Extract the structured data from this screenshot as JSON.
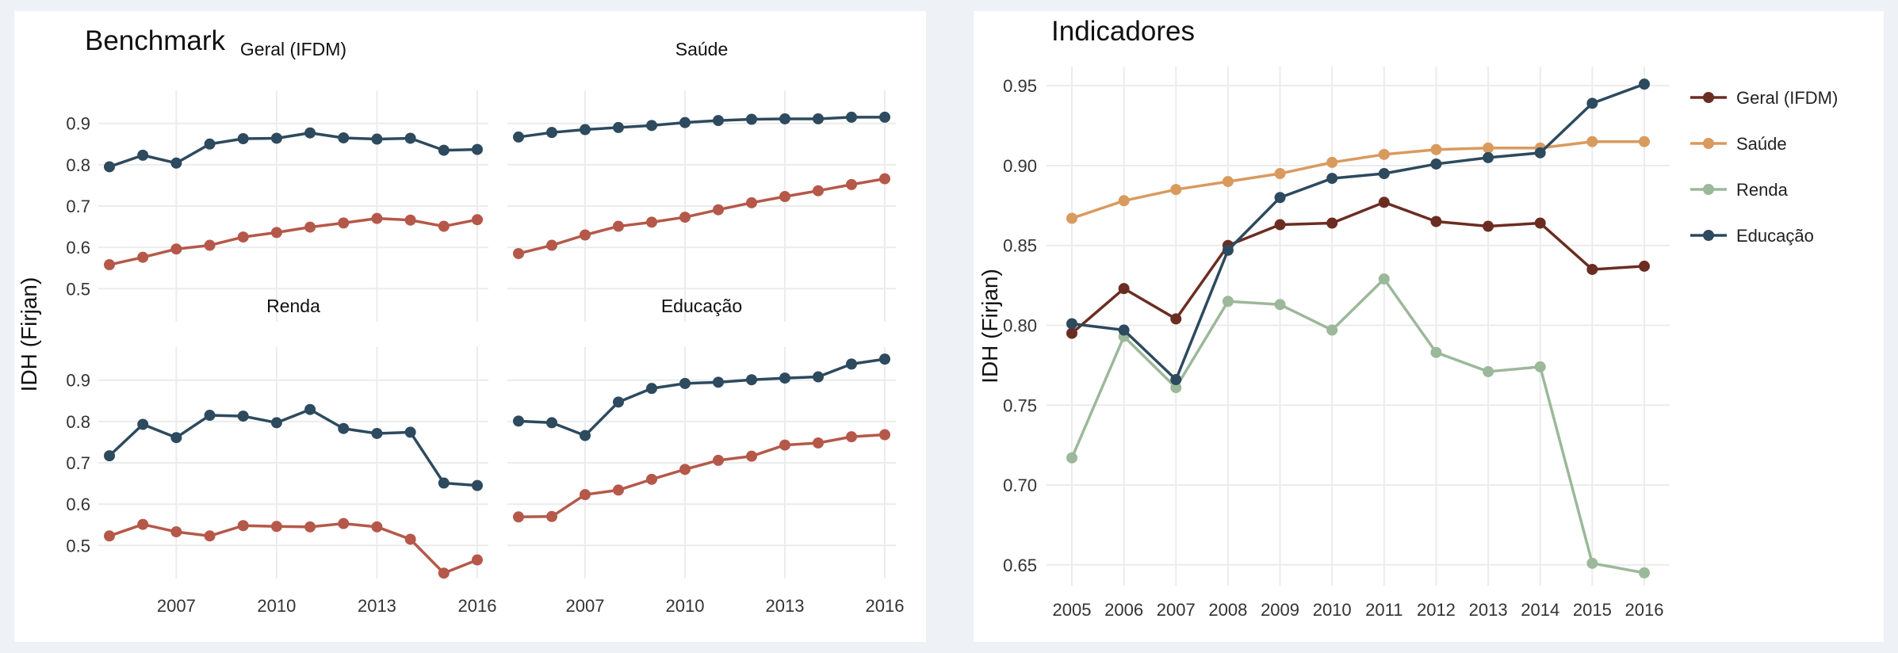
{
  "colors": {
    "benchmark": "#2d4a5e",
    "municipio": "#b5584a",
    "geral": "#6b2d22",
    "saude": "#d99a5e",
    "renda": "#9cb89a",
    "educacao": "#2d4a5e",
    "grid": "#ececec",
    "text": "#333333"
  },
  "left": {
    "title": "Benchmark",
    "ylabel": "IDH (Firjan)",
    "facets": [
      "Geral (IFDM)",
      "Saúde",
      "Renda",
      "Educação"
    ]
  },
  "right": {
    "title": "Indicadores",
    "ylabel": "IDH (Firjan)",
    "legend": [
      "Geral (IFDM)",
      "Saúde",
      "Renda",
      "Educação"
    ]
  },
  "chart_data": [
    {
      "type": "line",
      "title": "Benchmark",
      "ylabel": "IDH (Firjan)",
      "facet_rows": 2,
      "facet_cols": 2,
      "x": [
        2005,
        2006,
        2007,
        2008,
        2009,
        2010,
        2011,
        2012,
        2013,
        2014,
        2015,
        2016
      ],
      "xticks": [
        2007,
        2010,
        2013,
        2016
      ],
      "yticks": [
        0.5,
        0.6,
        0.7,
        0.8,
        0.9
      ],
      "ylim": [
        0.42,
        0.98
      ],
      "grid": true,
      "facets": [
        {
          "name": "Geral (IFDM)",
          "series": [
            {
              "color": "#2d4a5e",
              "values": [
                0.795,
                0.823,
                0.804,
                0.85,
                0.863,
                0.864,
                0.877,
                0.865,
                0.862,
                0.864,
                0.835,
                0.837
              ]
            },
            {
              "color": "#b5584a",
              "values": [
                0.558,
                0.576,
                0.596,
                0.605,
                0.625,
                0.636,
                0.649,
                0.659,
                0.67,
                0.666,
                0.651,
                0.667
              ]
            }
          ]
        },
        {
          "name": "Saúde",
          "series": [
            {
              "color": "#2d4a5e",
              "values": [
                0.867,
                0.878,
                0.885,
                0.89,
                0.895,
                0.902,
                0.907,
                0.91,
                0.911,
                0.911,
                0.915,
                0.915
              ]
            },
            {
              "color": "#b5584a",
              "values": [
                0.585,
                0.605,
                0.63,
                0.651,
                0.661,
                0.673,
                0.691,
                0.708,
                0.723,
                0.737,
                0.752,
                0.766
              ]
            }
          ]
        },
        {
          "name": "Renda",
          "series": [
            {
              "color": "#2d4a5e",
              "values": [
                0.717,
                0.793,
                0.761,
                0.815,
                0.813,
                0.797,
                0.829,
                0.783,
                0.771,
                0.774,
                0.651,
                0.645
              ]
            },
            {
              "color": "#b5584a",
              "values": [
                0.523,
                0.551,
                0.533,
                0.523,
                0.548,
                0.546,
                0.545,
                0.553,
                0.545,
                0.515,
                0.433,
                0.465
              ]
            }
          ]
        },
        {
          "name": "Educação",
          "series": [
            {
              "color": "#2d4a5e",
              "values": [
                0.801,
                0.797,
                0.766,
                0.847,
                0.88,
                0.892,
                0.895,
                0.901,
                0.905,
                0.908,
                0.939,
                0.951
              ]
            },
            {
              "color": "#b5584a",
              "values": [
                0.569,
                0.57,
                0.623,
                0.634,
                0.66,
                0.684,
                0.706,
                0.716,
                0.743,
                0.748,
                0.763,
                0.768
              ]
            }
          ]
        }
      ]
    },
    {
      "type": "line",
      "title": "Indicadores",
      "ylabel": "IDH (Firjan)",
      "x": [
        2005,
        2006,
        2007,
        2008,
        2009,
        2010,
        2011,
        2012,
        2013,
        2014,
        2015,
        2016
      ],
      "yticks": [
        0.65,
        0.7,
        0.75,
        0.8,
        0.85,
        0.9,
        0.95
      ],
      "ylim": [
        0.637,
        0.962
      ],
      "grid": true,
      "legend_position": "right",
      "series": [
        {
          "name": "Geral (IFDM)",
          "color": "#6b2d22",
          "values": [
            0.795,
            0.823,
            0.804,
            0.85,
            0.863,
            0.864,
            0.877,
            0.865,
            0.862,
            0.864,
            0.835,
            0.837
          ]
        },
        {
          "name": "Saúde",
          "color": "#d99a5e",
          "values": [
            0.867,
            0.878,
            0.885,
            0.89,
            0.895,
            0.902,
            0.907,
            0.91,
            0.911,
            0.911,
            0.915,
            0.915
          ]
        },
        {
          "name": "Renda",
          "color": "#9cb89a",
          "values": [
            0.717,
            0.793,
            0.761,
            0.815,
            0.813,
            0.797,
            0.829,
            0.783,
            0.771,
            0.774,
            0.651,
            0.645
          ]
        },
        {
          "name": "Educação",
          "color": "#2d4a5e",
          "values": [
            0.801,
            0.797,
            0.766,
            0.847,
            0.88,
            0.892,
            0.895,
            0.901,
            0.905,
            0.908,
            0.939,
            0.951
          ]
        }
      ]
    }
  ]
}
